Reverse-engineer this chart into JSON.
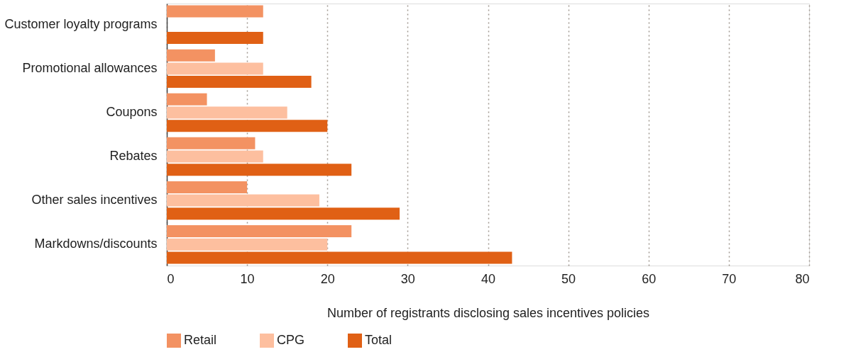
{
  "chart_data": {
    "type": "bar",
    "orientation": "horizontal",
    "xlabel": "Number of registrants disclosing sales incentives policies",
    "categories": [
      "Customer loyalty programs",
      "Promotional allowances",
      "Coupons",
      "Rebates",
      "Other sales incentives",
      "Markdowns/discounts"
    ],
    "series": [
      {
        "name": "Retail",
        "color": "#f39262",
        "values": [
          12,
          6,
          5,
          11,
          10,
          23
        ]
      },
      {
        "name": "CPG",
        "color": "#fdbf9f",
        "values": [
          null,
          12,
          15,
          12,
          19,
          20
        ]
      },
      {
        "name": "Total",
        "color": "#e06015",
        "values": [
          12,
          18,
          20,
          23,
          29,
          43
        ]
      }
    ],
    "xlim": [
      0,
      80
    ],
    "xticks": [
      0,
      10,
      20,
      30,
      40,
      50,
      60,
      70,
      80
    ],
    "grid": "x",
    "legend": "bottom"
  }
}
